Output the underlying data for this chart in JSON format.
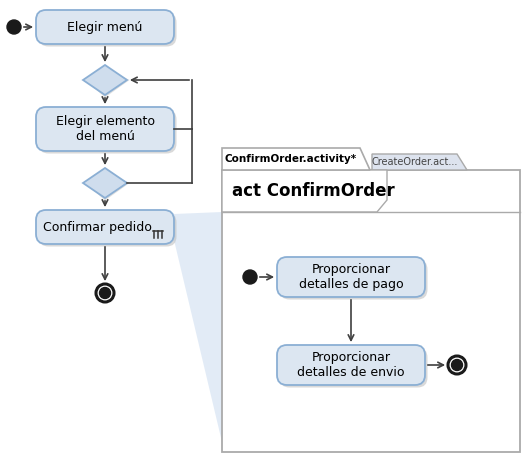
{
  "bg_color": "#ffffff",
  "node_fill": "#dce6f1",
  "node_edge": "#8bafd4",
  "shadow_color": "#b0b0b0",
  "diamond_fill": "#cfdded",
  "diamond_edge": "#8bafd4",
  "arrow_color": "#404040",
  "panel_fill": "#ffffff",
  "panel_edge": "#aaaaaa",
  "tab1_fill": "#ffffff",
  "tab2_fill": "#dde3ee",
  "triangle_fill": "#dde8f5",
  "title_text": "act ConfirmOrder",
  "tab1_text": "ConfirmOrder.activity*",
  "tab2_text": "CreateOrder.act...",
  "node1_text": "Elegir menú",
  "node2_text": "Elegir elemento\ndel menú",
  "node3_text": "Confirmar pedido",
  "node4_text": "Proporcionar\ndetalles de pago",
  "node5_text": "Proporcionar\ndetalles de envio",
  "font_size_nodes": 9,
  "font_size_title": 12,
  "font_size_tabs": 8
}
